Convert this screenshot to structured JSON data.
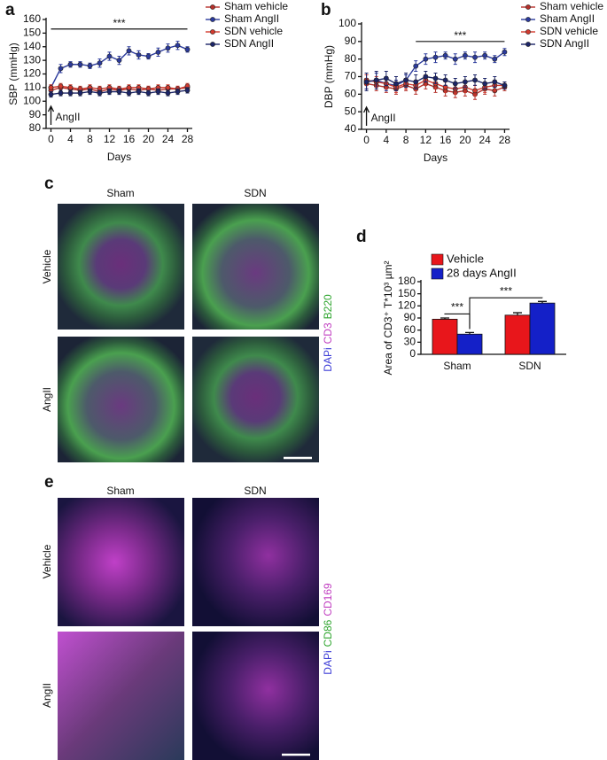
{
  "chart_data": [
    {
      "type": "line",
      "panel": "a",
      "ylabel": "SBP (mmHg)",
      "xlabel": "Days",
      "xlim": [
        -1,
        29
      ],
      "xticks": [
        0,
        4,
        8,
        12,
        16,
        20,
        24,
        28
      ],
      "ylim": [
        80,
        160
      ],
      "yticks": [
        80,
        90,
        100,
        110,
        120,
        130,
        140,
        150,
        160
      ],
      "x": [
        0,
        2,
        4,
        6,
        8,
        10,
        12,
        14,
        16,
        18,
        20,
        22,
        24,
        26,
        28
      ],
      "series": [
        {
          "name": "Sham vehicle",
          "color": "#b5302a",
          "values": [
            108,
            110,
            109,
            108,
            109,
            107,
            109,
            108,
            109,
            108,
            109,
            108,
            109,
            109,
            110
          ],
          "errors": [
            2,
            2,
            2,
            2,
            2,
            2,
            2,
            2,
            2,
            2,
            2,
            2,
            2,
            2,
            2
          ]
        },
        {
          "name": "Sham AngII",
          "color": "#2b3a9c",
          "values": [
            110,
            124,
            127,
            127,
            126,
            128,
            133,
            130,
            137,
            134,
            133,
            136,
            139,
            141,
            138
          ],
          "errors": [
            2,
            3,
            2,
            2,
            2,
            3,
            3,
            3,
            3,
            3,
            2,
            3,
            3,
            3,
            2
          ]
        },
        {
          "name": "SDN vehicle",
          "color": "#d23a2e",
          "values": [
            110,
            111,
            110,
            109,
            110,
            109,
            110,
            109,
            110,
            110,
            109,
            110,
            110,
            109,
            111
          ],
          "errors": [
            2,
            2,
            2,
            2,
            2,
            2,
            2,
            2,
            2,
            2,
            2,
            2,
            2,
            2,
            2
          ]
        },
        {
          "name": "SDN AngII",
          "color": "#1c2568",
          "values": [
            105,
            106,
            106,
            106,
            107,
            106,
            107,
            107,
            106,
            107,
            106,
            107,
            106,
            107,
            108
          ],
          "errors": [
            2,
            2,
            2,
            2,
            2,
            2,
            2,
            2,
            2,
            2,
            2,
            2,
            2,
            2,
            2
          ]
        }
      ],
      "significance": {
        "label": "***",
        "x": [
          0,
          28
        ],
        "y": 153
      },
      "arrow": {
        "label": "AngII",
        "x": 0
      }
    },
    {
      "type": "line",
      "panel": "b",
      "ylabel": "DBP (mmHg)",
      "xlabel": "Days",
      "xlim": [
        -1,
        29
      ],
      "xticks": [
        0,
        4,
        8,
        12,
        16,
        20,
        24,
        28
      ],
      "ylim": [
        40,
        100
      ],
      "yticks": [
        40,
        50,
        60,
        70,
        80,
        90,
        100
      ],
      "x": [
        0,
        2,
        4,
        6,
        8,
        10,
        12,
        14,
        16,
        18,
        20,
        22,
        24,
        26,
        28
      ],
      "series": [
        {
          "name": "Sham vehicle",
          "color": "#b5302a",
          "values": [
            66,
            65,
            64,
            63,
            65,
            63,
            66,
            64,
            62,
            61,
            62,
            60,
            63,
            62,
            64
          ],
          "errors": [
            3,
            3,
            3,
            3,
            3,
            3,
            3,
            3,
            3,
            3,
            3,
            3,
            3,
            3,
            2
          ]
        },
        {
          "name": "Sham AngII",
          "color": "#2b3a9c",
          "values": [
            67,
            68,
            66,
            65,
            68,
            76,
            80,
            81,
            82,
            80,
            82,
            81,
            82,
            80,
            84
          ],
          "errors": [
            4,
            4,
            4,
            3,
            3,
            3,
            3,
            3,
            2,
            3,
            2,
            3,
            2,
            2,
            2
          ]
        },
        {
          "name": "SDN vehicle",
          "color": "#d23a2e",
          "values": [
            68,
            67,
            66,
            64,
            66,
            65,
            68,
            66,
            64,
            63,
            64,
            62,
            64,
            65,
            65
          ],
          "errors": [
            3,
            3,
            3,
            3,
            3,
            3,
            3,
            3,
            3,
            3,
            3,
            3,
            3,
            3,
            2
          ]
        },
        {
          "name": "SDN AngII",
          "color": "#1c2568",
          "values": [
            67,
            68,
            69,
            66,
            68,
            67,
            70,
            69,
            68,
            66,
            67,
            68,
            66,
            67,
            65
          ],
          "errors": [
            5,
            5,
            4,
            4,
            4,
            4,
            3,
            3,
            3,
            3,
            3,
            3,
            3,
            3,
            2
          ]
        }
      ],
      "significance": {
        "label": "***",
        "x": [
          10,
          28
        ],
        "y": 90
      },
      "arrow": {
        "label": "AngII",
        "x": 0
      }
    },
    {
      "type": "bar",
      "panel": "d",
      "ylabel": "Area of CD3⁺ T*10³ µm²",
      "categories": [
        "Sham",
        "SDN"
      ],
      "ylim": [
        0,
        180
      ],
      "yticks": [
        0,
        30,
        60,
        90,
        120,
        150,
        180
      ],
      "series": [
        {
          "name": "Vehicle",
          "color": "#e8161b",
          "values": [
            87,
            97
          ],
          "errors": [
            3,
            6
          ]
        },
        {
          "name": "28 days AngII",
          "color": "#1420c8",
          "values": [
            50,
            127
          ],
          "errors": [
            4,
            4
          ]
        }
      ],
      "significance": [
        {
          "label": "***",
          "y": 100
        },
        {
          "label": "***",
          "y": 140
        }
      ]
    }
  ],
  "panel_c": {
    "letter": "c",
    "columns": [
      "Sham",
      "SDN"
    ],
    "rows": [
      "Vehicle",
      "AngII"
    ],
    "stain": [
      {
        "text": "DAPi",
        "color": "#3b3bd6"
      },
      {
        "text": "CD3",
        "color": "#c03cc0"
      },
      {
        "text": "B220",
        "color": "#2ea52e"
      }
    ]
  },
  "panel_e": {
    "letter": "e",
    "columns": [
      "Sham",
      "SDN"
    ],
    "rows": [
      "Vehicle",
      "AngII"
    ],
    "stain": [
      {
        "text": "DAPi",
        "color": "#3b3bd6"
      },
      {
        "text": "CD86",
        "color": "#2ea52e"
      },
      {
        "text": "CD169",
        "color": "#c03cc0"
      }
    ]
  }
}
